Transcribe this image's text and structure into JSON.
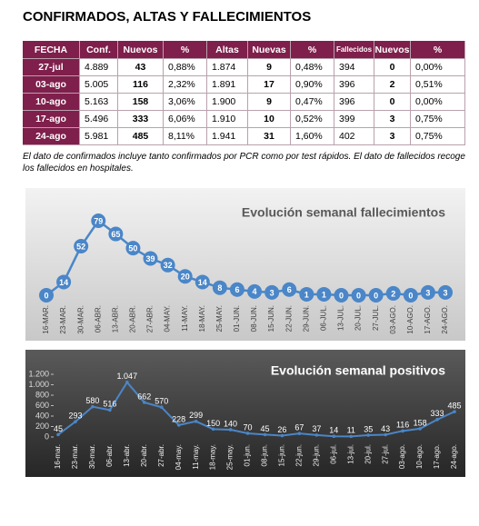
{
  "title": "CONFIRMADOS, ALTAS Y FALLECIMIENTOS",
  "table": {
    "header": [
      "FECHA",
      "Conf.",
      "Nuevos",
      "%",
      "Altas",
      "Nuevas",
      "%",
      "Fallecidos",
      "Nuevos",
      "%"
    ],
    "rows": [
      [
        "27-jul",
        "4.889",
        "43",
        "0,88%",
        "1.874",
        "9",
        "0,48%",
        "394",
        "0",
        "0,00%"
      ],
      [
        "03-ago",
        "5.005",
        "116",
        "2,32%",
        "1.891",
        "17",
        "0,90%",
        "396",
        "2",
        "0,51%"
      ],
      [
        "10-ago",
        "5.163",
        "158",
        "3,06%",
        "1.900",
        "9",
        "0,47%",
        "396",
        "0",
        "0,00%"
      ],
      [
        "17-ago",
        "5.496",
        "333",
        "6,06%",
        "1.910",
        "10",
        "0,52%",
        "399",
        "3",
        "0,75%"
      ],
      [
        "24-ago",
        "5.981",
        "485",
        "8,11%",
        "1.941",
        "31",
        "1,60%",
        "402",
        "3",
        "0,75%"
      ]
    ]
  },
  "note": "El dato de confirmados incluye tanto confirmados por PCR como por test rápidos. El dato de fallecidos recoge los fallecidos en hospitales.",
  "chart_data": [
    {
      "type": "line",
      "title": "Evolución semanal fallecimientos",
      "color": "#4a86c8",
      "categories": [
        "16-MAR.",
        "23-MAR.",
        "30-MAR.",
        "06-ABR.",
        "13-ABR.",
        "20-ABR.",
        "27-ABR.",
        "04-MAY.",
        "11-MAY.",
        "18-MAY.",
        "25-MAY.",
        "01-JUN.",
        "08-JUN.",
        "15-JUN.",
        "22-JUN.",
        "29-JUN.",
        "06-JUL.",
        "13-JUL.",
        "20-JUL.",
        "27-JUL.",
        "03-AGO.",
        "10-AGO.",
        "17-AGO.",
        "24-AGO."
      ],
      "values": [
        0,
        14,
        52,
        79,
        65,
        50,
        39,
        32,
        20,
        14,
        8,
        6,
        4,
        3,
        6,
        1,
        1,
        0,
        0,
        0,
        2,
        0,
        3,
        3
      ]
    },
    {
      "type": "line",
      "title": "Evolución semanal positivos",
      "color": "#4a86c8",
      "categories": [
        "16-mar.",
        "23-mar.",
        "30-mar.",
        "06-abr.",
        "13-abr.",
        "20-abr.",
        "27-abr.",
        "04-may.",
        "11-may.",
        "18-may.",
        "25-may.",
        "01-jun.",
        "08-jun.",
        "15-jun.",
        "22-jun.",
        "29-jun.",
        "06-jul.",
        "13-jul.",
        "20-jul.",
        "27-jul.",
        "03-ago.",
        "10-ago.",
        "17-ago.",
        "24-ago."
      ],
      "values": [
        45,
        293,
        580,
        516,
        1047,
        662,
        570,
        228,
        299,
        150,
        140,
        70,
        45,
        26,
        67,
        37,
        14,
        11,
        35,
        43,
        116,
        158,
        333,
        485
      ],
      "value_labels": [
        "45",
        "293",
        "580",
        "516",
        "1.047",
        "662",
        "570",
        "228",
        "299",
        "150",
        "140",
        "70",
        "45",
        "26",
        "67",
        "37",
        "14",
        "11",
        "35",
        "43",
        "116",
        "158",
        "333",
        "485"
      ],
      "ylim": [
        0,
        1200
      ],
      "yticks": [
        0,
        200,
        400,
        600,
        800,
        {
          "value": 1000,
          "label": "1.000"
        },
        {
          "value": 1200,
          "label": "1.200"
        }
      ]
    }
  ]
}
